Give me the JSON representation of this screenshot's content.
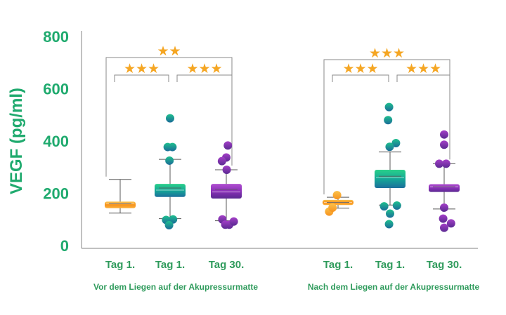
{
  "chart_data": {
    "type": "box",
    "ylabel": "VEGF (pg/ml)",
    "ylim": [
      0,
      800
    ],
    "yticks": [
      0,
      200,
      400,
      600,
      800
    ],
    "colors": {
      "text_accent": "#1faa6e",
      "axis": "#9a9a9a",
      "bracket": "#8a8a8a",
      "star": "#f5a623",
      "whisker": "#5a5a5a",
      "category_labels": "#2f9b5c"
    },
    "groups": [
      {
        "label": "Vor dem Liegen auf der Akupressurmatte",
        "categories": [
          {
            "label": "Tag 1.",
            "color": "orange",
            "q1": 143,
            "median": 162,
            "q3": 168,
            "mean": 160,
            "whisker_low": 124,
            "whisker_high": 253,
            "points": []
          },
          {
            "label": "Tag 1.",
            "color": "teal",
            "q1": 186,
            "median": 212,
            "q3": 236,
            "mean": 220,
            "whisker_low": 103,
            "whisker_high": 330,
            "points": [
              [
                0.0,
                487
              ],
              [
                -0.12,
                377
              ],
              [
                0.12,
                377
              ],
              [
                -0.03,
                325
              ],
              [
                -0.2,
                98
              ],
              [
                0.15,
                100
              ],
              [
                -0.05,
                78
              ]
            ]
          },
          {
            "label": "Tag 30.",
            "color": "purple",
            "q1": 180,
            "median": 205,
            "q3": 236,
            "mean": 215,
            "whisker_low": 95,
            "whisker_high": 290,
            "points": [
              [
                0.08,
                383
              ],
              [
                0.0,
                337
              ],
              [
                -0.22,
                323
              ],
              [
                0.02,
                290
              ],
              [
                -0.2,
                100
              ],
              [
                -0.05,
                80
              ],
              [
                0.15,
                80
              ],
              [
                0.38,
                92
              ]
            ]
          }
        ],
        "brackets": [
          {
            "from": 0,
            "to": 2,
            "stars": "★★"
          },
          {
            "from": 0,
            "to": 1,
            "stars": "★★★"
          },
          {
            "from": 1,
            "to": 2,
            "stars": "★★★"
          }
        ]
      },
      {
        "label": "Nach dem Liegen auf der Akupressurmatte",
        "categories": [
          {
            "label": "Tag 1.",
            "color": "orange",
            "q1": 155,
            "median": 165,
            "q3": 175,
            "mean": 165,
            "whisker_low": 143,
            "whisker_high": 185,
            "points": [
              [
                -0.45,
                130
              ],
              [
                -0.28,
                145
              ],
              [
                -0.05,
                193
              ]
            ]
          },
          {
            "label": "Tag 1.",
            "color": "teal",
            "q1": 220,
            "median": 260,
            "q3": 290,
            "mean": 265,
            "whisker_low": 155,
            "whisker_high": 358,
            "points": [
              [
                -0.05,
                530
              ],
              [
                -0.1,
                480
              ],
              [
                0.3,
                392
              ],
              [
                -0.02,
                378
              ],
              [
                -0.3,
                150
              ],
              [
                0.35,
                153
              ],
              [
                0.0,
                122
              ],
              [
                -0.05,
                82
              ]
            ]
          },
          {
            "label": "Tag 30.",
            "color": "purple",
            "q1": 205,
            "median": 225,
            "q3": 235,
            "mean": 225,
            "whisker_low": 140,
            "whisker_high": 313,
            "points": [
              [
                0.0,
                425
              ],
              [
                0.0,
                386
              ],
              [
                -0.25,
                313
              ],
              [
                0.1,
                313
              ],
              [
                0.0,
                145
              ],
              [
                -0.05,
                103
              ],
              [
                0.35,
                85
              ],
              [
                0.0,
                68
              ]
            ]
          }
        ],
        "brackets": [
          {
            "from": 0,
            "to": 2,
            "stars": "★★★"
          },
          {
            "from": 0,
            "to": 1,
            "stars": "★★★"
          },
          {
            "from": 1,
            "to": 2,
            "stars": "★★★"
          }
        ]
      }
    ]
  }
}
